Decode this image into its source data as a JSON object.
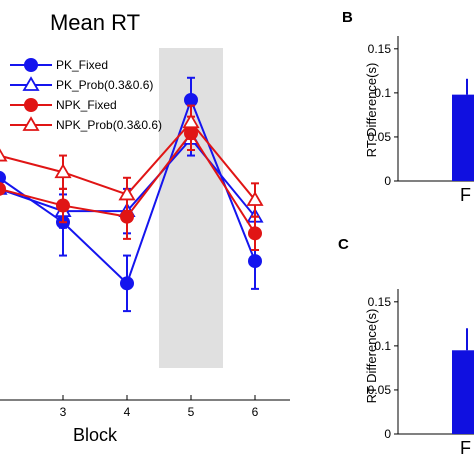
{
  "chart_data": [
    {
      "type": "line",
      "title": "Mean RT",
      "xlabel": "Block",
      "ylabel": "",
      "x": [
        2,
        3,
        4,
        5,
        6
      ],
      "x_ticks": [
        "3",
        "4",
        "5",
        "6"
      ],
      "y_range": [
        0.28,
        1.0
      ],
      "shaded_x_range": [
        4.5,
        5.5
      ],
      "legend_position": "top-left",
      "series": [
        {
          "name": "PK_Fixed",
          "color": "#1515ee",
          "marker": "filled-circle",
          "values": [
            0.68,
            0.6,
            0.49,
            0.82,
            0.53
          ],
          "errors": [
            0.0,
            0.06,
            0.05,
            0.04,
            0.05
          ]
        },
        {
          "name": "PK_Prob(0.3&0.6)",
          "color": "#1515ee",
          "marker": "open-triangle",
          "values": [
            0.66,
            0.62,
            0.62,
            0.75,
            0.61
          ],
          "errors": [
            0.0,
            0.03,
            0.04,
            0.03,
            0.03
          ]
        },
        {
          "name": "NPK_Fixed",
          "color": "#e01515",
          "marker": "filled-circle",
          "values": [
            0.66,
            0.63,
            0.61,
            0.76,
            0.58
          ],
          "errors": [
            0.0,
            0.03,
            0.04,
            0.03,
            0.03
          ]
        },
        {
          "name": "NPK_Prob(0.3&0.6)",
          "color": "#e01515",
          "marker": "open-triangle",
          "values": [
            0.72,
            0.69,
            0.65,
            0.78,
            0.64
          ],
          "errors": [
            0.0,
            0.03,
            0.03,
            0.03,
            0.03
          ]
        }
      ]
    },
    {
      "type": "bar",
      "panel_label": "B",
      "ylabel": "RT Difference(s)",
      "categories": [
        "F"
      ],
      "values": [
        0.098
      ],
      "errors": [
        0.018
      ],
      "y_ticks": [
        "0",
        "0.05",
        "0.1",
        "0.15"
      ],
      "ylim": [
        0,
        0.16
      ],
      "bar_color": "#1010e0"
    },
    {
      "type": "bar",
      "panel_label": "C",
      "ylabel": "RT Difference(s)",
      "categories": [
        "F"
      ],
      "values": [
        0.095
      ],
      "errors": [
        0.025
      ],
      "y_ticks": [
        "0",
        "0.05",
        "0.1",
        "0.15"
      ],
      "ylim": [
        0,
        0.16
      ],
      "bar_color": "#1010e0"
    }
  ]
}
